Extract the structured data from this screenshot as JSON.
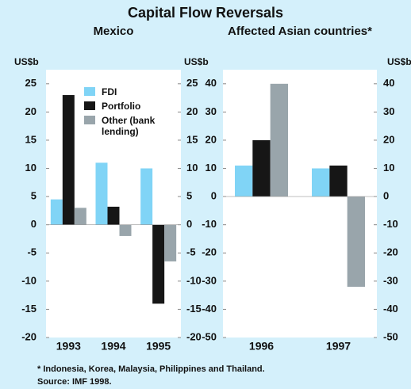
{
  "title": "Capital Flow Reversals",
  "footnote": "* Indonesia, Korea, Malaysia, Philippines and Thailand.",
  "source": "Source: IMF 1998.",
  "chart_data": [
    {
      "type": "bar",
      "title": "Mexico",
      "y_unit": "US$b",
      "categories": [
        "1993",
        "1994",
        "1995"
      ],
      "series": [
        {
          "name": "FDI",
          "color": "#80d4f6",
          "values": [
            4.5,
            11,
            10
          ]
        },
        {
          "name": "Portfolio",
          "color": "#161616",
          "values": [
            23,
            3.2,
            -14
          ]
        },
        {
          "name": "Other (bank lending)",
          "color": "#99a5ab",
          "values": [
            3,
            -2,
            -6.5
          ]
        }
      ],
      "ylim": [
        -20,
        27.5
      ],
      "yticks": [
        -20,
        -15,
        -10,
        -5,
        0,
        5,
        10,
        15,
        20,
        25
      ]
    },
    {
      "type": "bar",
      "title": "Affected Asian countries*",
      "y_unit": "US$b",
      "categories": [
        "1996",
        "1997"
      ],
      "series": [
        {
          "name": "FDI",
          "color": "#80d4f6",
          "values": [
            11,
            10
          ]
        },
        {
          "name": "Portfolio",
          "color": "#161616",
          "values": [
            20,
            11
          ]
        },
        {
          "name": "Other (bank lending)",
          "color": "#99a5ab",
          "values": [
            40,
            -32
          ]
        }
      ],
      "ylim": [
        -50,
        45
      ],
      "yticks": [
        -50,
        -40,
        -30,
        -20,
        -10,
        0,
        10,
        20,
        30,
        40
      ]
    }
  ]
}
